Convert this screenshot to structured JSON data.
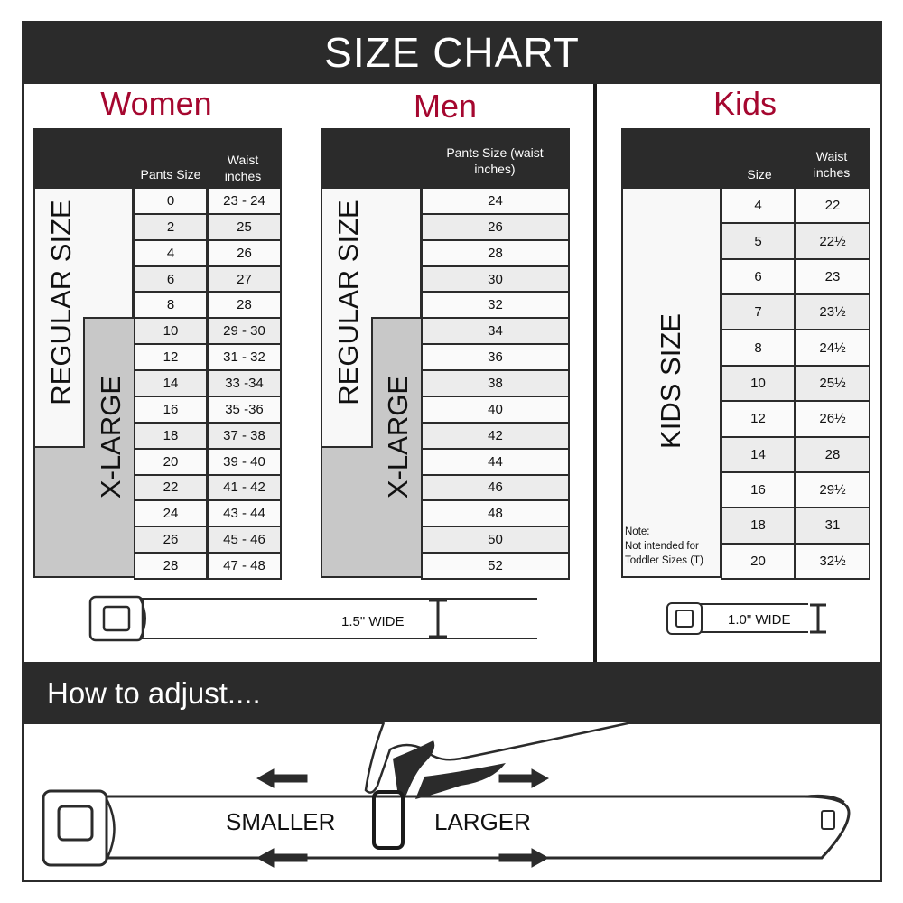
{
  "title": "SIZE CHART",
  "women": {
    "title": "Women",
    "headers": [
      "Pants Size",
      "Waist inches"
    ],
    "regular_label": "REGULAR SIZE",
    "xlarge_label": "X-LARGE",
    "rows": [
      [
        "0",
        "23 - 24"
      ],
      [
        "2",
        "25"
      ],
      [
        "4",
        "26"
      ],
      [
        "6",
        "27"
      ],
      [
        "8",
        "28"
      ],
      [
        "10",
        "29 - 30"
      ],
      [
        "12",
        "31 - 32"
      ],
      [
        "14",
        "33 -34"
      ],
      [
        "16",
        "35 -36"
      ],
      [
        "18",
        "37 - 38"
      ],
      [
        "20",
        "39 - 40"
      ],
      [
        "22",
        "41 - 42"
      ],
      [
        "24",
        "43 - 44"
      ],
      [
        "26",
        "45 - 46"
      ],
      [
        "28",
        "47 - 48"
      ]
    ]
  },
  "men": {
    "title": "Men",
    "headers": [
      "Pants Size (waist inches)"
    ],
    "regular_label": "REGULAR SIZE",
    "xlarge_label": "X-LARGE",
    "rows": [
      "24",
      "26",
      "28",
      "30",
      "32",
      "34",
      "36",
      "38",
      "40",
      "42",
      "44",
      "46",
      "48",
      "50",
      "52"
    ]
  },
  "kids": {
    "title": "Kids",
    "headers": [
      "Size",
      "Waist inches"
    ],
    "side_label": "KIDS SIZE",
    "note": "Note:",
    "note_text": "Not intended for Toddler Sizes (T)",
    "rows": [
      [
        "4",
        "22"
      ],
      [
        "5",
        "22½"
      ],
      [
        "6",
        "23"
      ],
      [
        "7",
        "23½"
      ],
      [
        "8",
        "24½"
      ],
      [
        "10",
        "25½"
      ],
      [
        "12",
        "26½"
      ],
      [
        "14",
        "28"
      ],
      [
        "16",
        "29½"
      ],
      [
        "18",
        "31"
      ],
      [
        "20",
        "32½"
      ]
    ]
  },
  "adult_belt_width": "1.5\" WIDE",
  "kids_belt_width": "1.0\" WIDE",
  "adjust": {
    "heading": "How to adjust....",
    "smaller": "SMALLER",
    "larger": "LARGER"
  },
  "colors": {
    "dark": "#2b2b2b",
    "accent": "#a5072f",
    "xlarge_grey": "#c8c8c8"
  }
}
